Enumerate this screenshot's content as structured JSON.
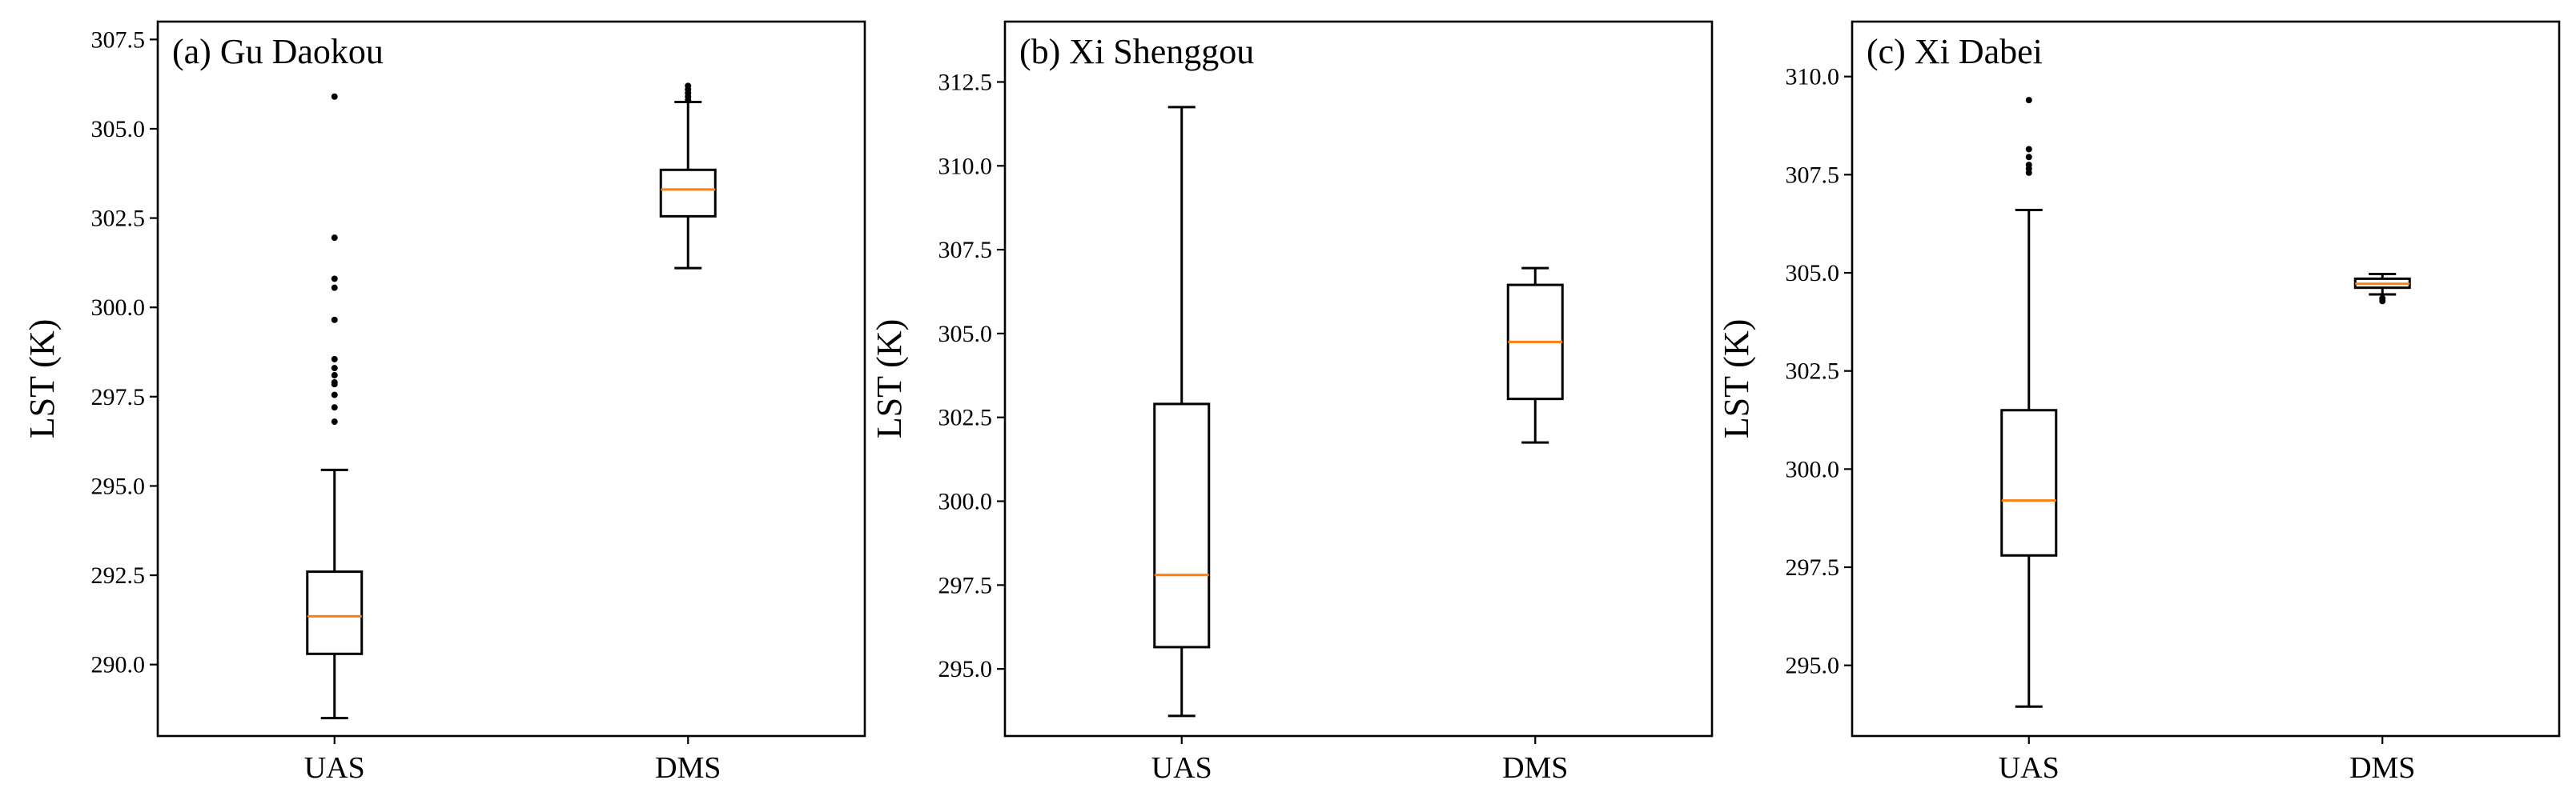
{
  "chart_data": [
    {
      "type": "box",
      "title": "(a) Gu Daokou",
      "ylabel": "LST (K)",
      "ylim": [
        288.0,
        308.0
      ],
      "yticks": [
        "290.0",
        "292.5",
        "295.0",
        "297.5",
        "300.0",
        "302.5",
        "305.0",
        "307.5"
      ],
      "categories": [
        "UAS",
        "DMS"
      ],
      "boxes": [
        {
          "label": "UAS",
          "whislo": 288.5,
          "q1": 290.3,
          "med": 291.35,
          "q3": 292.6,
          "whishi": 295.45,
          "fliers": [
            305.9,
            301.95,
            300.8,
            300.55,
            299.65,
            298.55,
            298.3,
            298.1,
            297.9,
            297.85,
            297.55,
            297.2,
            296.8
          ]
        },
        {
          "label": "DMS",
          "whislo": 301.1,
          "q1": 302.55,
          "med": 303.3,
          "q3": 303.85,
          "whishi": 305.75,
          "fliers": [
            305.8,
            305.9,
            306.0,
            306.1,
            306.2
          ]
        }
      ]
    },
    {
      "type": "box",
      "title": "(b) Xi Shenggou",
      "ylabel": "LST (K)",
      "ylim": [
        293.0,
        314.3
      ],
      "yticks": [
        "295.0",
        "297.5",
        "300.0",
        "302.5",
        "305.0",
        "307.5",
        "310.0",
        "312.5"
      ],
      "categories": [
        "UAS",
        "DMS"
      ],
      "boxes": [
        {
          "label": "UAS",
          "whislo": 293.6,
          "q1": 295.65,
          "med": 297.8,
          "q3": 302.9,
          "whishi": 311.75,
          "fliers": []
        },
        {
          "label": "DMS",
          "whislo": 301.75,
          "q1": 303.05,
          "med": 304.75,
          "q3": 306.45,
          "whishi": 306.95,
          "fliers": []
        }
      ]
    },
    {
      "type": "box",
      "title": "(c) Xi Dabei",
      "ylabel": "LST (K)",
      "ylim": [
        293.2,
        311.4
      ],
      "yticks": [
        "295.0",
        "297.5",
        "300.0",
        "302.5",
        "305.0",
        "307.5",
        "310.0"
      ],
      "categories": [
        "UAS",
        "DMS"
      ],
      "boxes": [
        {
          "label": "UAS",
          "whislo": 293.95,
          "q1": 297.8,
          "med": 299.2,
          "q3": 301.5,
          "whishi": 306.6,
          "fliers": [
            309.4,
            308.15,
            307.95,
            307.75,
            307.65,
            307.55
          ]
        },
        {
          "label": "DMS",
          "whislo": 304.45,
          "q1": 304.62,
          "med": 304.72,
          "q3": 304.85,
          "whishi": 304.97,
          "fliers": [
            304.35,
            304.28
          ]
        }
      ]
    }
  ]
}
